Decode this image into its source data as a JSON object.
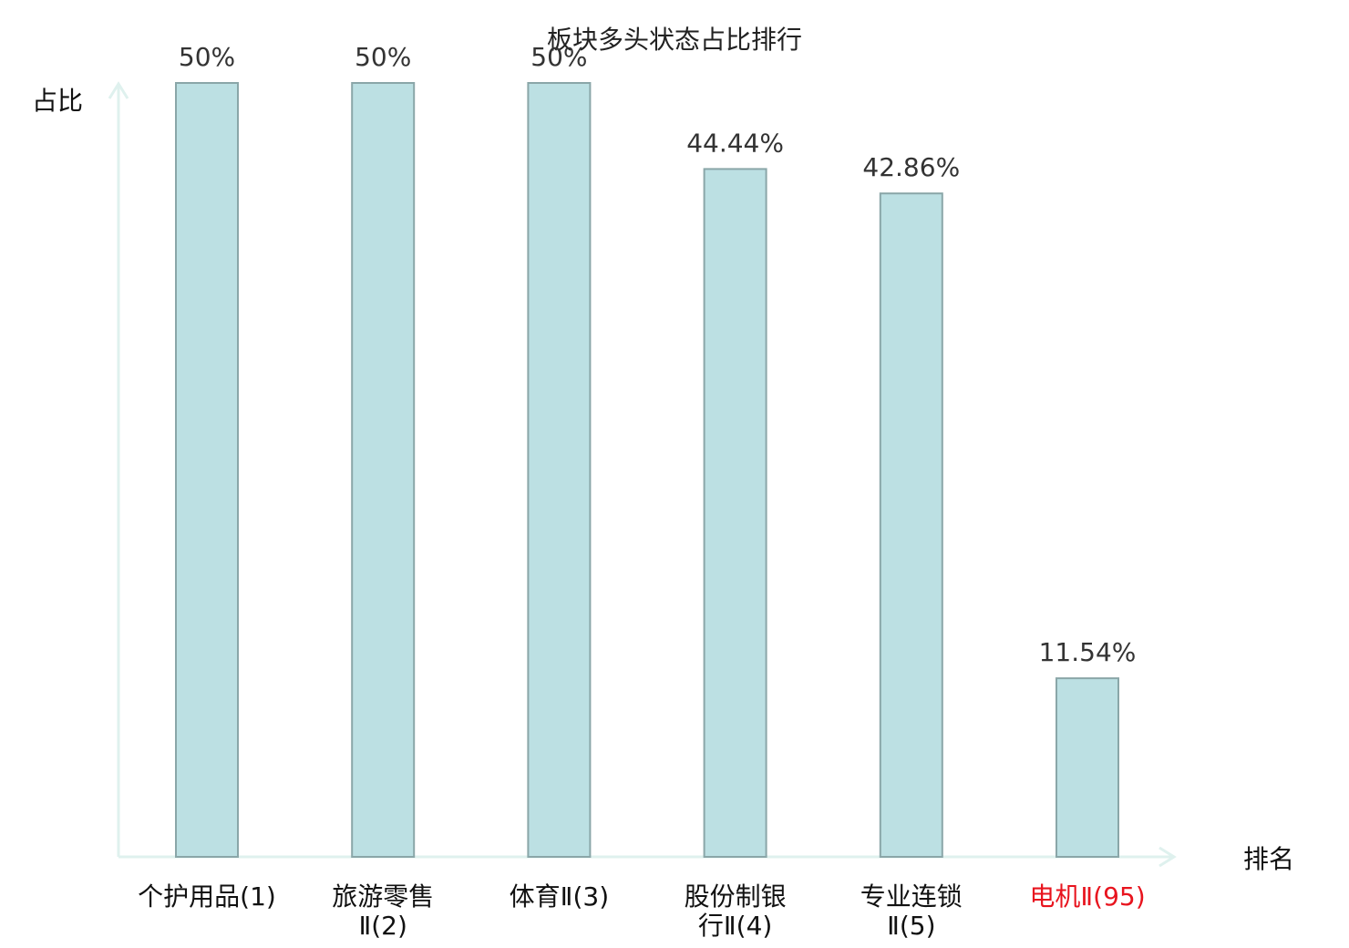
{
  "chart_data": {
    "type": "bar",
    "title": "板块多头状态占比排行",
    "xlabel": "排名",
    "ylabel": "占比",
    "categories": [
      [
        "个护用品(1)"
      ],
      [
        "旅游零售",
        "Ⅱ(2)"
      ],
      [
        "体育Ⅱ(3)"
      ],
      [
        "股份制银",
        "行Ⅱ(4)"
      ],
      [
        "专业连锁",
        "Ⅱ(5)"
      ],
      [
        "电机Ⅱ(95)"
      ]
    ],
    "values": [
      50,
      50,
      50,
      44.44,
      42.86,
      11.54
    ],
    "value_labels": [
      "50%",
      "50%",
      "50%",
      "44.44%",
      "42.86%",
      "11.54%"
    ],
    "highlight_index": 5,
    "ylim": [
      0,
      50
    ],
    "grid": false,
    "colors": {
      "bar_fill": "#bce0e3",
      "bar_stroke": "#8aa6a8",
      "axis": "#dff1ee",
      "highlight_text": "#e8141e"
    }
  }
}
